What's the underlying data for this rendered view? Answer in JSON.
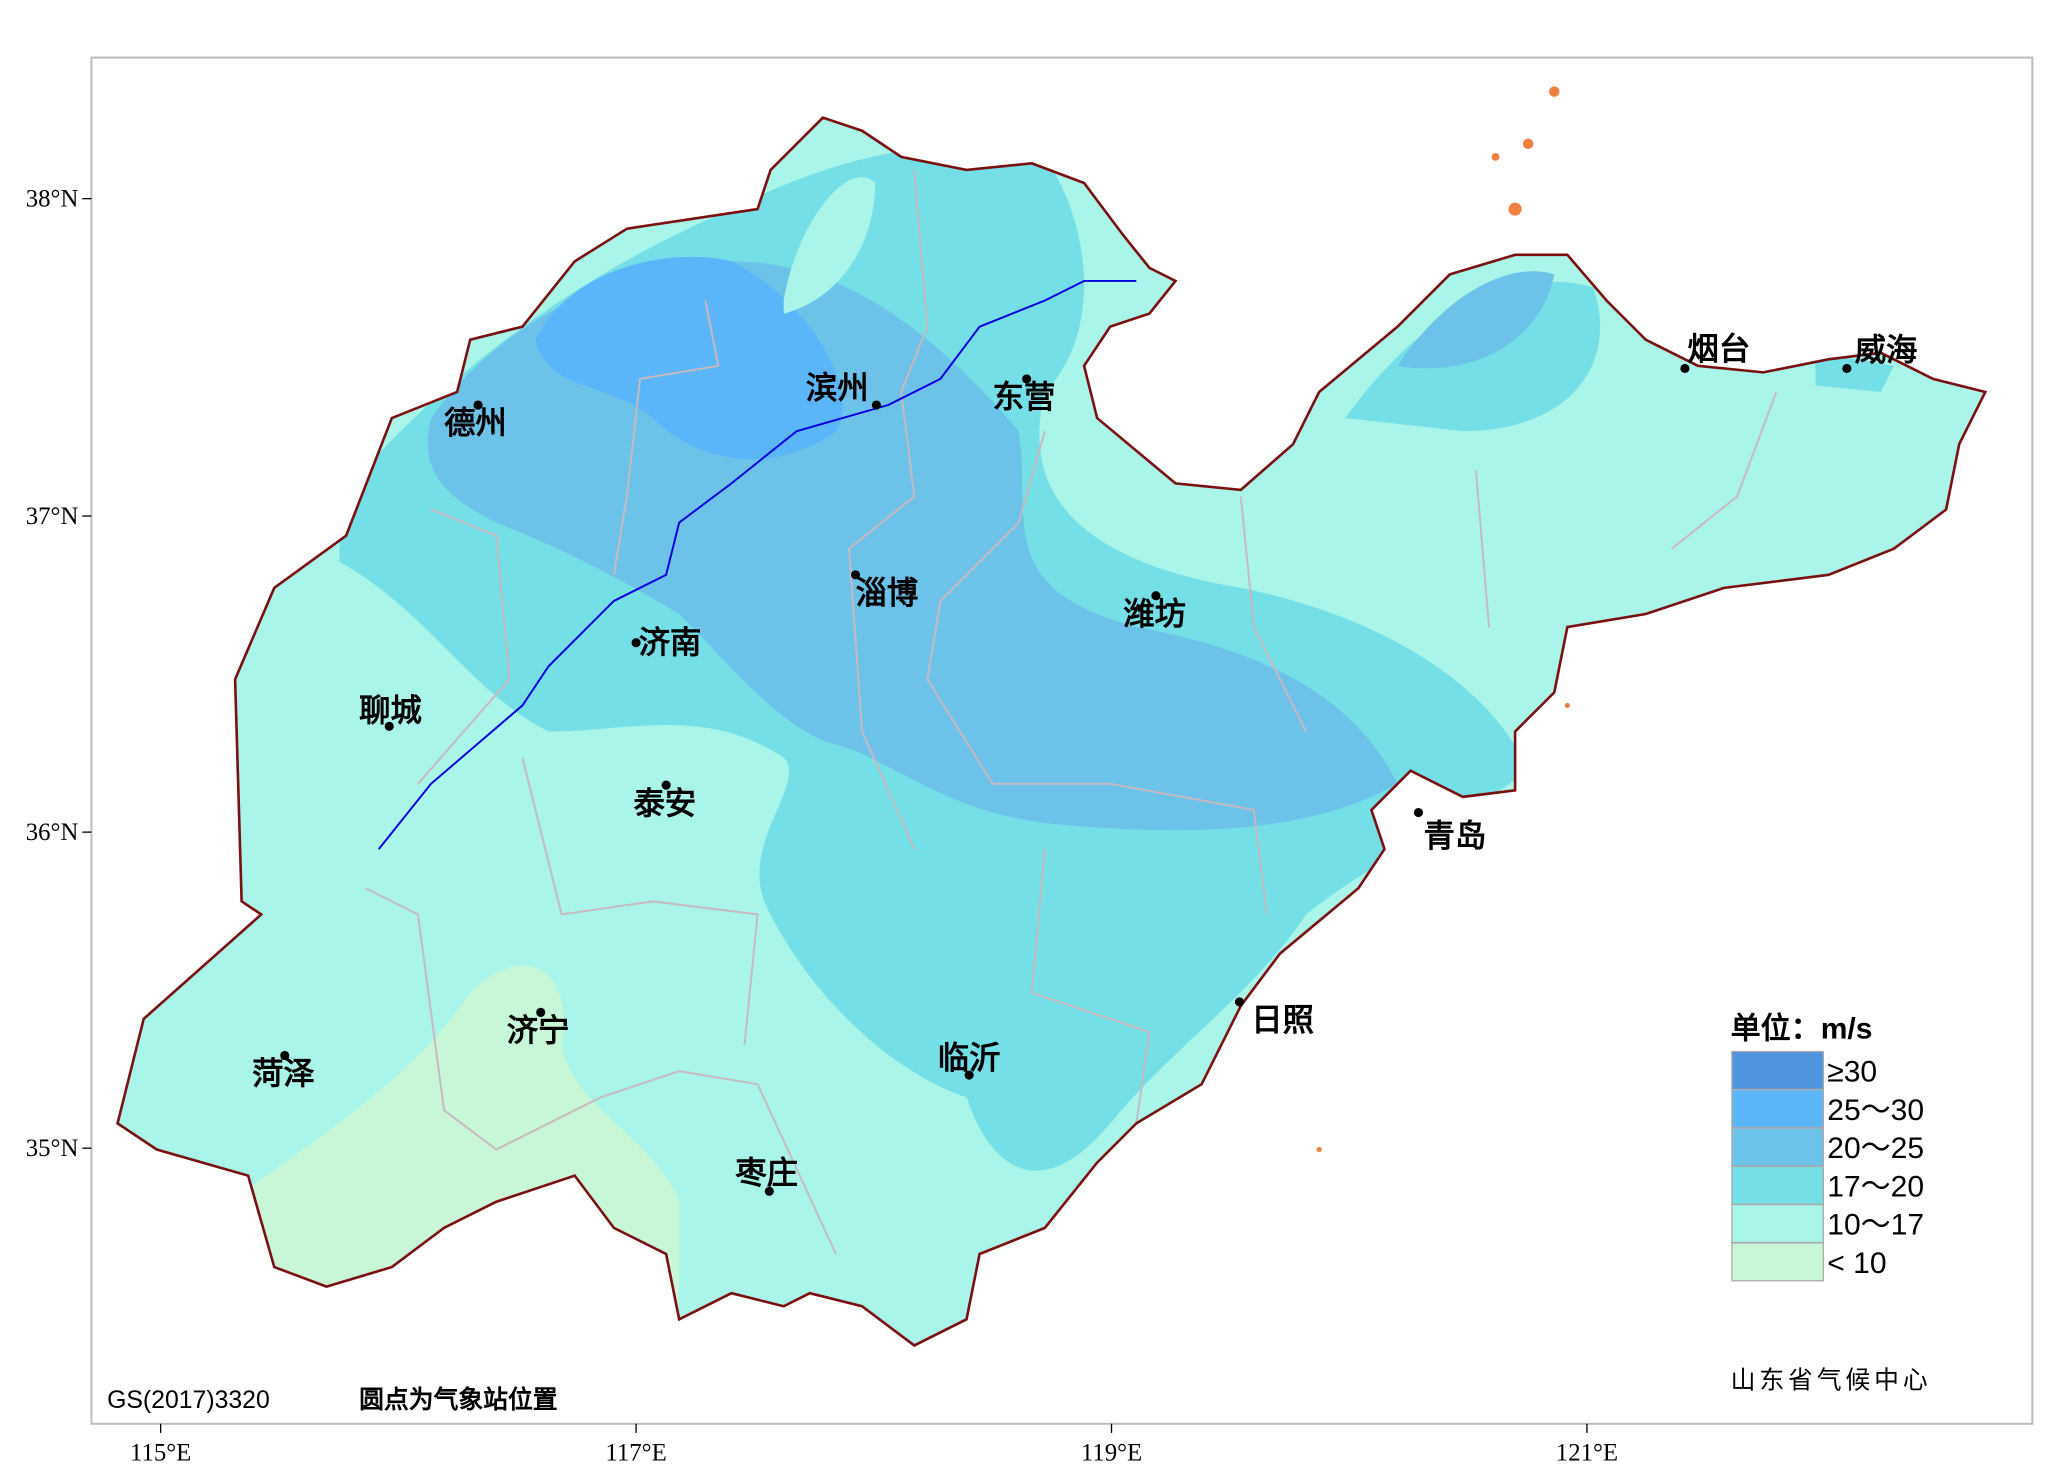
{
  "axes": {
    "x_ticks": [
      "115°E",
      "117°E",
      "119°E",
      "121°E"
    ],
    "y_ticks": [
      "38°N",
      "37°N",
      "36°N",
      "35°N"
    ]
  },
  "cities": [
    "滨州",
    "东营",
    "德州",
    "烟台",
    "威海",
    "淄博",
    "潍坊",
    "济南",
    "聊城",
    "泰安",
    "青岛",
    "日照",
    "济宁",
    "临沂",
    "菏泽",
    "枣庄"
  ],
  "legend": {
    "title": "单位：m/s",
    "items": [
      {
        "label": "≥30",
        "color": "#4f94de"
      },
      {
        "label": "25～30",
        "color": "#5bb5f9"
      },
      {
        "label": "20～25",
        "color": "#6cc2e9"
      },
      {
        "label": "17～20",
        "color": "#74dfe6"
      },
      {
        "label": "10～17",
        "color": "#aaf5ea"
      },
      {
        "label": "< 10",
        "color": "#c8f7d7"
      }
    ]
  },
  "footer": {
    "code": "GS(2017)3320",
    "note": "圆点为气象站位置",
    "source": "山东省气候中心"
  }
}
